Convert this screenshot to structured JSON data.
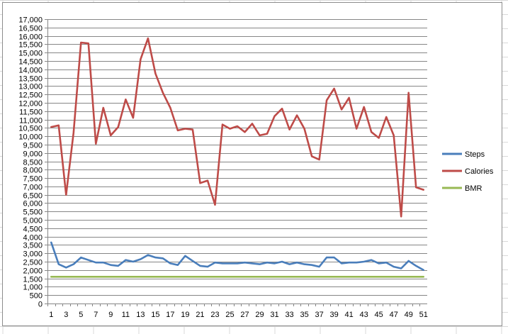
{
  "chart_data": {
    "type": "line",
    "title": "",
    "xlabel": "",
    "ylabel": "",
    "x": [
      1,
      2,
      3,
      4,
      5,
      6,
      7,
      8,
      9,
      10,
      11,
      12,
      13,
      14,
      15,
      16,
      17,
      18,
      19,
      20,
      21,
      22,
      23,
      24,
      25,
      26,
      27,
      28,
      29,
      30,
      31,
      32,
      33,
      34,
      35,
      36,
      37,
      38,
      39,
      40,
      41,
      42,
      43,
      44,
      45,
      46,
      47,
      48,
      49,
      50,
      51
    ],
    "x_tick_labels": [
      "1",
      "3",
      "5",
      "7",
      "9",
      "11",
      "13",
      "15",
      "17",
      "19",
      "21",
      "23",
      "25",
      "27",
      "29",
      "31",
      "33",
      "35",
      "37",
      "39",
      "41",
      "43",
      "45",
      "47",
      "49",
      "51"
    ],
    "ylim": [
      0,
      17000
    ],
    "y_tick_labels": [
      "0",
      "500",
      "1,000",
      "1,500",
      "2,000",
      "2,500",
      "3,000",
      "3,500",
      "4,000",
      "4,500",
      "5,000",
      "5,500",
      "6,000",
      "6,500",
      "7,000",
      "7,500",
      "8,000",
      "8,500",
      "9,000",
      "9,500",
      "10,000",
      "10,500",
      "11,000",
      "11,500",
      "12,000",
      "12,500",
      "13,000",
      "13,500",
      "14,000",
      "14,500",
      "15,000",
      "15,500",
      "16,000",
      "16,500",
      "17,000"
    ],
    "grid": true,
    "legend_position": "right",
    "series": [
      {
        "name": "Steps",
        "color": "#4a7ebb",
        "values": [
          3650,
          2350,
          2150,
          2350,
          2750,
          2600,
          2450,
          2450,
          2300,
          2250,
          2600,
          2500,
          2650,
          2900,
          2750,
          2700,
          2400,
          2300,
          2850,
          2550,
          2250,
          2200,
          2450,
          2400,
          2400,
          2400,
          2450,
          2400,
          2350,
          2450,
          2400,
          2500,
          2350,
          2450,
          2350,
          2300,
          2200,
          2750,
          2750,
          2400,
          2450,
          2450,
          2500,
          2600,
          2400,
          2450,
          2200,
          2100,
          2550,
          2250,
          2000
        ]
      },
      {
        "name": "Calories",
        "color": "#be4b48",
        "values": [
          10550,
          10650,
          6500,
          10200,
          15600,
          15550,
          9550,
          11700,
          10050,
          10550,
          12200,
          11100,
          14600,
          15850,
          13750,
          12600,
          11700,
          10350,
          10450,
          10400,
          7200,
          7350,
          5900,
          10700,
          10450,
          10600,
          10250,
          10750,
          10050,
          10150,
          11200,
          11650,
          10400,
          11250,
          10450,
          8800,
          8600,
          12150,
          12850,
          11600,
          12300,
          10450,
          11750,
          10250,
          9900,
          11150,
          10050,
          5200,
          12600,
          6950,
          6800
        ]
      },
      {
        "name": "BMR",
        "color": "#98b954",
        "values": [
          1600,
          1600,
          1600,
          1600,
          1600,
          1600,
          1600,
          1600,
          1600,
          1600,
          1600,
          1600,
          1600,
          1600,
          1600,
          1600,
          1600,
          1600,
          1600,
          1600,
          1600,
          1600,
          1600,
          1600,
          1600,
          1600,
          1600,
          1600,
          1600,
          1600,
          1600,
          1600,
          1600,
          1600,
          1600,
          1600,
          1600,
          1600,
          1600,
          1600,
          1600,
          1600,
          1600,
          1600,
          1600,
          1600,
          1600,
          1600,
          1600,
          1600,
          1600
        ]
      }
    ]
  }
}
